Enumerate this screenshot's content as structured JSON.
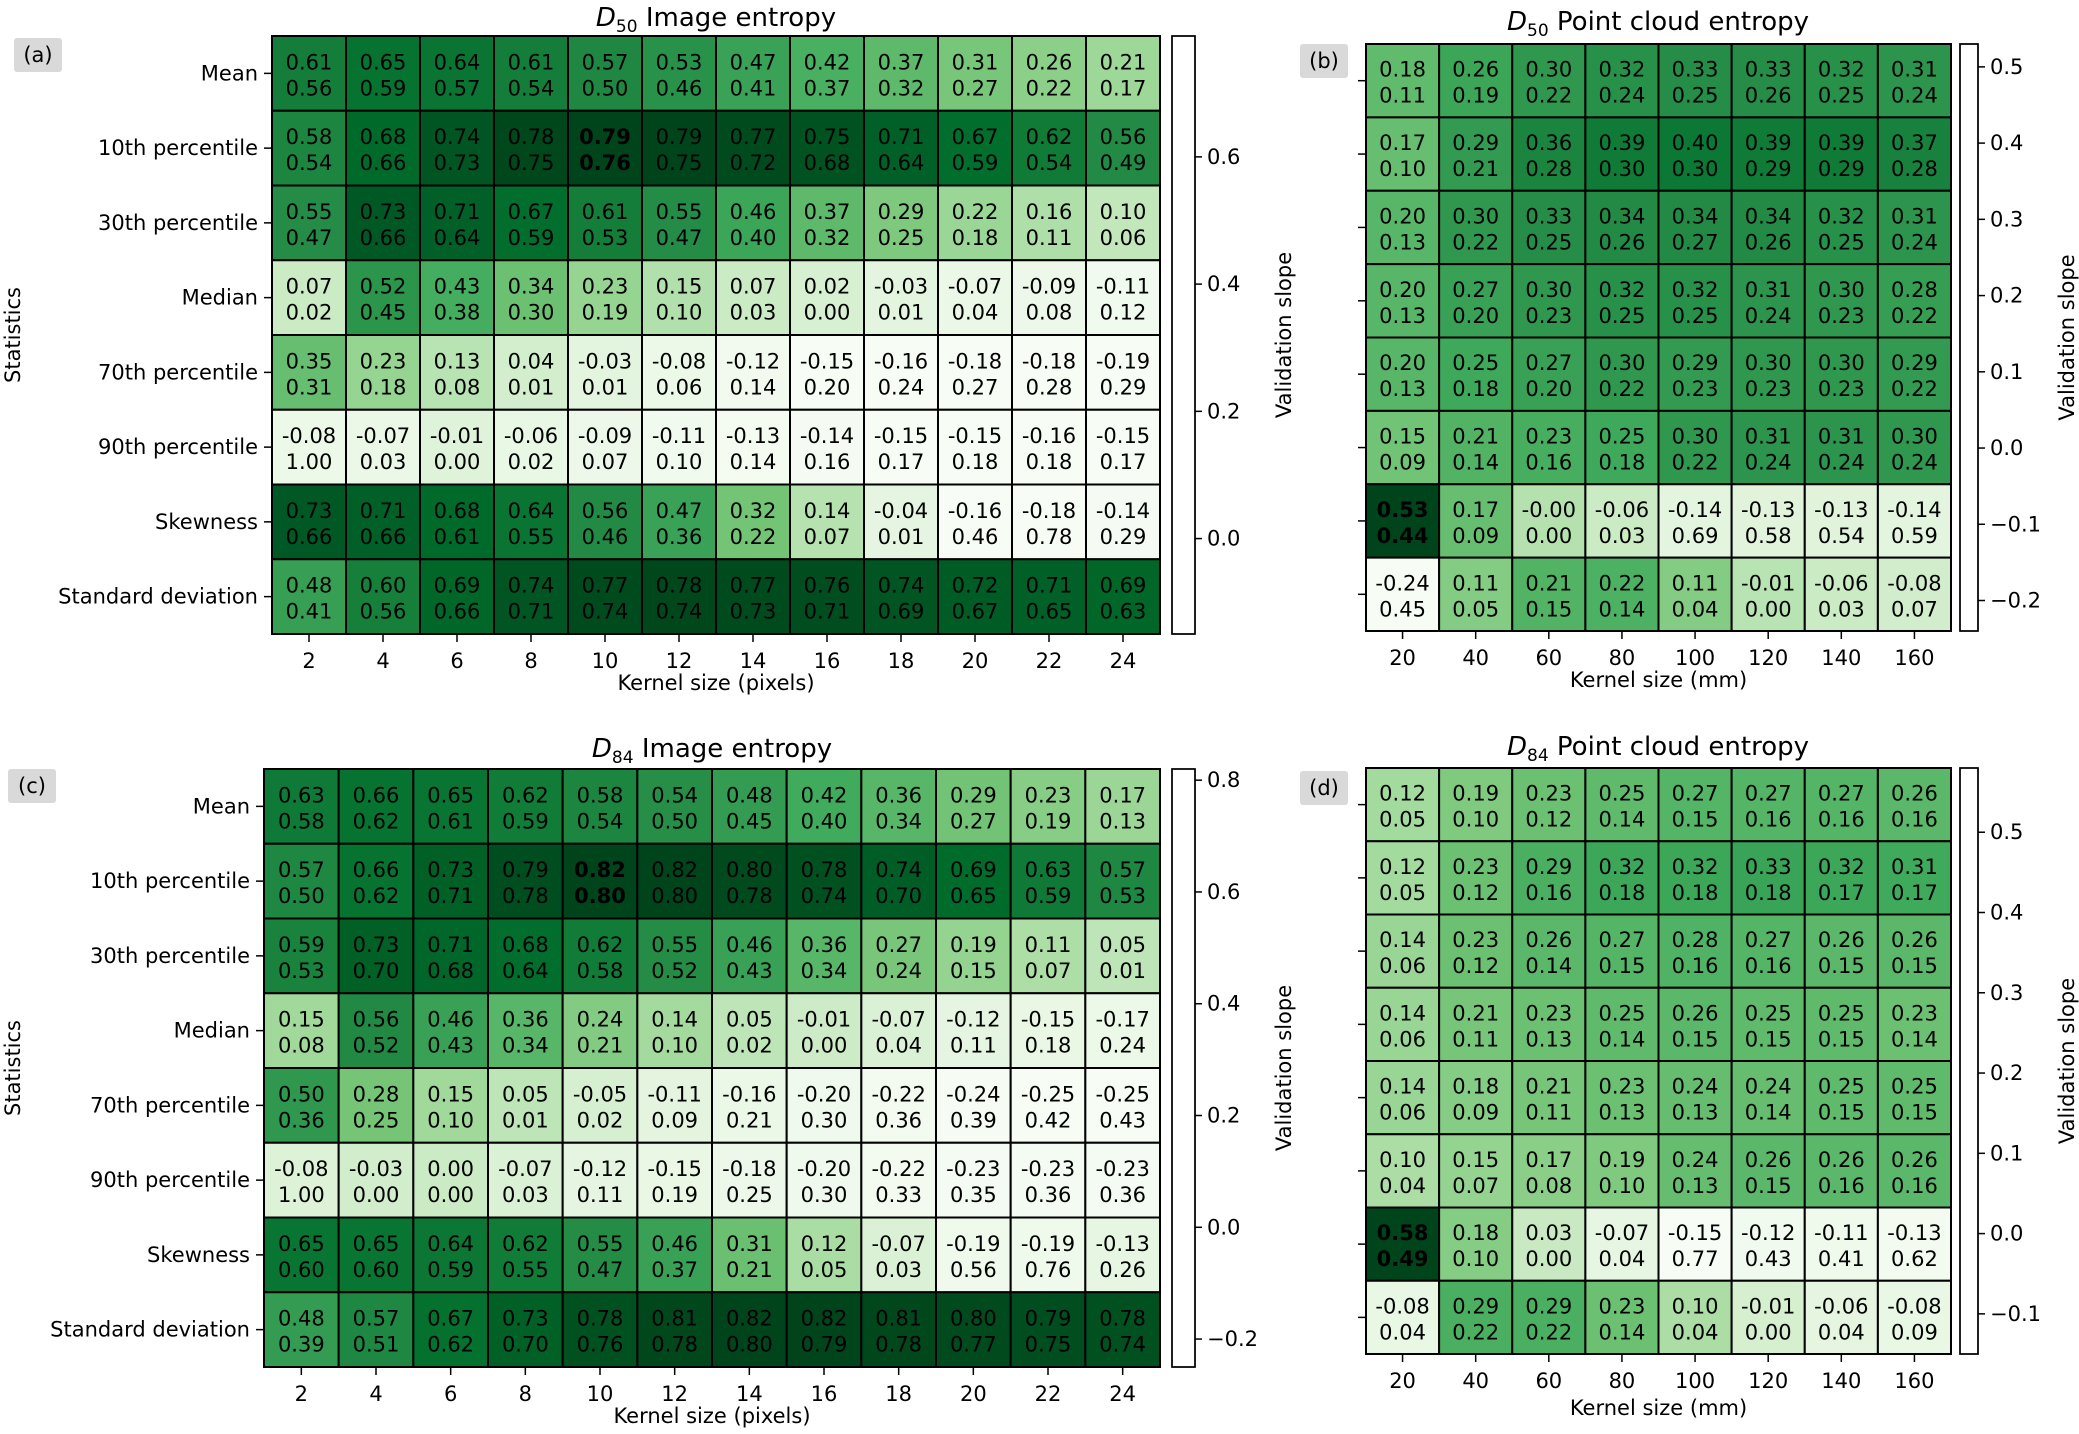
{
  "chart_data": [
    {
      "type": "heatmap",
      "panel_label": "(a)",
      "title_sym": "D",
      "title_sub": "50",
      "title_rest": " Image entropy",
      "xlabel": "Kernel size (pixels)",
      "ylabel": "Statistics",
      "colorbar_label": "Validation slope",
      "colorbar_ticks": [
        "0.0",
        "0.2",
        "0.4",
        "0.6"
      ],
      "colorbar_tick_values": [
        0.0,
        0.2,
        0.4,
        0.6
      ],
      "vmin": -0.15,
      "vmax": 0.79,
      "x_categories": [
        "2",
        "4",
        "6",
        "8",
        "10",
        "12",
        "14",
        "16",
        "18",
        "20",
        "22",
        "24"
      ],
      "y_categories": [
        "Mean",
        "10th percentile",
        "30th percentile",
        "Median",
        "70th percentile",
        "90th percentile",
        "Skewness",
        "Standard deviation"
      ],
      "bold_cell": [
        1,
        4
      ],
      "top_values": [
        [
          "0.61",
          "0.65",
          "0.64",
          "0.61",
          "0.57",
          "0.53",
          "0.47",
          "0.42",
          "0.37",
          "0.31",
          "0.26",
          "0.21"
        ],
        [
          "0.58",
          "0.68",
          "0.74",
          "0.78",
          "0.79",
          "0.79",
          "0.77",
          "0.75",
          "0.71",
          "0.67",
          "0.62",
          "0.56"
        ],
        [
          "0.55",
          "0.73",
          "0.71",
          "0.67",
          "0.61",
          "0.55",
          "0.46",
          "0.37",
          "0.29",
          "0.22",
          "0.16",
          "0.10"
        ],
        [
          "0.07",
          "0.52",
          "0.43",
          "0.34",
          "0.23",
          "0.15",
          "0.07",
          "0.02",
          "-0.03",
          "-0.07",
          "-0.09",
          "-0.11"
        ],
        [
          "0.35",
          "0.23",
          "0.13",
          "0.04",
          "-0.03",
          "-0.08",
          "-0.12",
          "-0.15",
          "-0.16",
          "-0.18",
          "-0.18",
          "-0.19"
        ],
        [
          "-0.08",
          "-0.07",
          "-0.01",
          "-0.06",
          "-0.09",
          "-0.11",
          "-0.13",
          "-0.14",
          "-0.15",
          "-0.15",
          "-0.16",
          "-0.15"
        ],
        [
          "0.73",
          "0.71",
          "0.68",
          "0.64",
          "0.56",
          "0.47",
          "0.32",
          "0.14",
          "-0.04",
          "-0.16",
          "-0.18",
          "-0.14"
        ],
        [
          "0.48",
          "0.60",
          "0.69",
          "0.74",
          "0.77",
          "0.78",
          "0.77",
          "0.76",
          "0.74",
          "0.72",
          "0.71",
          "0.69"
        ]
      ],
      "bottom_values": [
        [
          "0.56",
          "0.59",
          "0.57",
          "0.54",
          "0.50",
          "0.46",
          "0.41",
          "0.37",
          "0.32",
          "0.27",
          "0.22",
          "0.17"
        ],
        [
          "0.54",
          "0.66",
          "0.73",
          "0.75",
          "0.76",
          "0.75",
          "0.72",
          "0.68",
          "0.64",
          "0.59",
          "0.54",
          "0.49"
        ],
        [
          "0.47",
          "0.66",
          "0.64",
          "0.59",
          "0.53",
          "0.47",
          "0.40",
          "0.32",
          "0.25",
          "0.18",
          "0.11",
          "0.06"
        ],
        [
          "0.02",
          "0.45",
          "0.38",
          "0.30",
          "0.19",
          "0.10",
          "0.03",
          "0.00",
          "0.01",
          "0.04",
          "0.08",
          "0.12"
        ],
        [
          "0.31",
          "0.18",
          "0.08",
          "0.01",
          "0.01",
          "0.06",
          "0.14",
          "0.20",
          "0.24",
          "0.27",
          "0.28",
          "0.29"
        ],
        [
          "1.00",
          "0.03",
          "0.00",
          "0.02",
          "0.07",
          "0.10",
          "0.14",
          "0.16",
          "0.17",
          "0.18",
          "0.18",
          "0.17"
        ],
        [
          "0.66",
          "0.66",
          "0.61",
          "0.55",
          "0.46",
          "0.36",
          "0.22",
          "0.07",
          "0.01",
          "0.46",
          "0.78",
          "0.29"
        ],
        [
          "0.41",
          "0.56",
          "0.66",
          "0.71",
          "0.74",
          "0.74",
          "0.73",
          "0.71",
          "0.69",
          "0.67",
          "0.65",
          "0.63"
        ]
      ]
    },
    {
      "type": "heatmap",
      "panel_label": "(b)",
      "title_sym": "D",
      "title_sub": "50",
      "title_rest": " Point cloud entropy",
      "xlabel": "Kernel size (mm)",
      "ylabel": "",
      "colorbar_label": "Validation slope",
      "colorbar_ticks": [
        "−0.2",
        "−0.1",
        "0.0",
        "0.1",
        "0.2",
        "0.3",
        "0.4",
        "0.5"
      ],
      "colorbar_tick_values": [
        -0.2,
        -0.1,
        0.0,
        0.1,
        0.2,
        0.3,
        0.4,
        0.5
      ],
      "vmin": -0.24,
      "vmax": 0.53,
      "x_categories": [
        "20",
        "40",
        "60",
        "80",
        "100",
        "120",
        "140",
        "160"
      ],
      "y_categories": [
        "Mean",
        "10th percentile",
        "30th percentile",
        "Median",
        "70th percentile",
        "90th percentile",
        "Skewness",
        "Standard deviation"
      ],
      "bold_cell": [
        6,
        0
      ],
      "top_values": [
        [
          "0.18",
          "0.26",
          "0.30",
          "0.32",
          "0.33",
          "0.33",
          "0.32",
          "0.31"
        ],
        [
          "0.17",
          "0.29",
          "0.36",
          "0.39",
          "0.40",
          "0.39",
          "0.39",
          "0.37"
        ],
        [
          "0.20",
          "0.30",
          "0.33",
          "0.34",
          "0.34",
          "0.34",
          "0.32",
          "0.31"
        ],
        [
          "0.20",
          "0.27",
          "0.30",
          "0.32",
          "0.32",
          "0.31",
          "0.30",
          "0.28"
        ],
        [
          "0.20",
          "0.25",
          "0.27",
          "0.30",
          "0.29",
          "0.30",
          "0.30",
          "0.29"
        ],
        [
          "0.15",
          "0.21",
          "0.23",
          "0.25",
          "0.30",
          "0.31",
          "0.31",
          "0.30"
        ],
        [
          "0.53",
          "0.17",
          "-0.00",
          "-0.06",
          "-0.14",
          "-0.13",
          "-0.13",
          "-0.14"
        ],
        [
          "-0.24",
          "0.11",
          "0.21",
          "0.22",
          "0.11",
          "-0.01",
          "-0.06",
          "-0.08"
        ]
      ],
      "bottom_values": [
        [
          "0.11",
          "0.19",
          "0.22",
          "0.24",
          "0.25",
          "0.26",
          "0.25",
          "0.24"
        ],
        [
          "0.10",
          "0.21",
          "0.28",
          "0.30",
          "0.30",
          "0.29",
          "0.29",
          "0.28"
        ],
        [
          "0.13",
          "0.22",
          "0.25",
          "0.26",
          "0.27",
          "0.26",
          "0.25",
          "0.24"
        ],
        [
          "0.13",
          "0.20",
          "0.23",
          "0.25",
          "0.25",
          "0.24",
          "0.23",
          "0.22"
        ],
        [
          "0.13",
          "0.18",
          "0.20",
          "0.22",
          "0.23",
          "0.23",
          "0.23",
          "0.22"
        ],
        [
          "0.09",
          "0.14",
          "0.16",
          "0.18",
          "0.22",
          "0.24",
          "0.24",
          "0.24"
        ],
        [
          "0.44",
          "0.09",
          "0.00",
          "0.03",
          "0.69",
          "0.58",
          "0.54",
          "0.59"
        ],
        [
          "0.45",
          "0.05",
          "0.15",
          "0.14",
          "0.04",
          "0.00",
          "0.03",
          "0.07"
        ]
      ]
    },
    {
      "type": "heatmap",
      "panel_label": "(c)",
      "title_sym": "D",
      "title_sub": "84",
      "title_rest": " Image entropy",
      "xlabel": "Kernel size (pixels)",
      "ylabel": "Statistics",
      "colorbar_label": "Validation slope",
      "colorbar_ticks": [
        "−0.2",
        "0.0",
        "0.2",
        "0.4",
        "0.6",
        "0.8"
      ],
      "colorbar_tick_values": [
        -0.2,
        0.0,
        0.2,
        0.4,
        0.6,
        0.8
      ],
      "vmin": -0.25,
      "vmax": 0.82,
      "x_categories": [
        "2",
        "4",
        "6",
        "8",
        "10",
        "12",
        "14",
        "16",
        "18",
        "20",
        "22",
        "24"
      ],
      "y_categories": [
        "Mean",
        "10th percentile",
        "30th percentile",
        "Median",
        "70th percentile",
        "90th percentile",
        "Skewness",
        "Standard deviation"
      ],
      "bold_cell": [
        1,
        4
      ],
      "top_values": [
        [
          "0.63",
          "0.66",
          "0.65",
          "0.62",
          "0.58",
          "0.54",
          "0.48",
          "0.42",
          "0.36",
          "0.29",
          "0.23",
          "0.17"
        ],
        [
          "0.57",
          "0.66",
          "0.73",
          "0.79",
          "0.82",
          "0.82",
          "0.80",
          "0.78",
          "0.74",
          "0.69",
          "0.63",
          "0.57"
        ],
        [
          "0.59",
          "0.73",
          "0.71",
          "0.68",
          "0.62",
          "0.55",
          "0.46",
          "0.36",
          "0.27",
          "0.19",
          "0.11",
          "0.05"
        ],
        [
          "0.15",
          "0.56",
          "0.46",
          "0.36",
          "0.24",
          "0.14",
          "0.05",
          "-0.01",
          "-0.07",
          "-0.12",
          "-0.15",
          "-0.17"
        ],
        [
          "0.50",
          "0.28",
          "0.15",
          "0.05",
          "-0.05",
          "-0.11",
          "-0.16",
          "-0.20",
          "-0.22",
          "-0.24",
          "-0.25",
          "-0.25"
        ],
        [
          "-0.08",
          "-0.03",
          "0.00",
          "-0.07",
          "-0.12",
          "-0.15",
          "-0.18",
          "-0.20",
          "-0.22",
          "-0.23",
          "-0.23",
          "-0.23"
        ],
        [
          "0.65",
          "0.65",
          "0.64",
          "0.62",
          "0.55",
          "0.46",
          "0.31",
          "0.12",
          "-0.07",
          "-0.19",
          "-0.19",
          "-0.13"
        ],
        [
          "0.48",
          "0.57",
          "0.67",
          "0.73",
          "0.78",
          "0.81",
          "0.82",
          "0.82",
          "0.81",
          "0.80",
          "0.79",
          "0.78"
        ]
      ],
      "bottom_values": [
        [
          "0.58",
          "0.62",
          "0.61",
          "0.59",
          "0.54",
          "0.50",
          "0.45",
          "0.40",
          "0.34",
          "0.27",
          "0.19",
          "0.13"
        ],
        [
          "0.50",
          "0.62",
          "0.71",
          "0.78",
          "0.80",
          "0.80",
          "0.78",
          "0.74",
          "0.70",
          "0.65",
          "0.59",
          "0.53"
        ],
        [
          "0.53",
          "0.70",
          "0.68",
          "0.64",
          "0.58",
          "0.52",
          "0.43",
          "0.34",
          "0.24",
          "0.15",
          "0.07",
          "0.01"
        ],
        [
          "0.08",
          "0.52",
          "0.43",
          "0.34",
          "0.21",
          "0.10",
          "0.02",
          "0.00",
          "0.04",
          "0.11",
          "0.18",
          "0.24"
        ],
        [
          "0.36",
          "0.25",
          "0.10",
          "0.01",
          "0.02",
          "0.09",
          "0.21",
          "0.30",
          "0.36",
          "0.39",
          "0.42",
          "0.43"
        ],
        [
          "1.00",
          "0.00",
          "0.00",
          "0.03",
          "0.11",
          "0.19",
          "0.25",
          "0.30",
          "0.33",
          "0.35",
          "0.36",
          "0.36"
        ],
        [
          "0.60",
          "0.60",
          "0.59",
          "0.55",
          "0.47",
          "0.37",
          "0.21",
          "0.05",
          "0.03",
          "0.56",
          "0.76",
          "0.26"
        ],
        [
          "0.39",
          "0.51",
          "0.62",
          "0.70",
          "0.76",
          "0.78",
          "0.80",
          "0.79",
          "0.78",
          "0.77",
          "0.75",
          "0.74"
        ]
      ]
    },
    {
      "type": "heatmap",
      "panel_label": "(d)",
      "title_sym": "D",
      "title_sub": "84",
      "title_rest": " Point cloud entropy",
      "xlabel": "Kernel size (mm)",
      "ylabel": "",
      "colorbar_label": "Validation slope",
      "colorbar_ticks": [
        "−0.1",
        "0.0",
        "0.1",
        "0.2",
        "0.3",
        "0.4",
        "0.5"
      ],
      "colorbar_tick_values": [
        -0.1,
        0.0,
        0.1,
        0.2,
        0.3,
        0.4,
        0.5
      ],
      "vmin": -0.15,
      "vmax": 0.58,
      "x_categories": [
        "20",
        "40",
        "60",
        "80",
        "100",
        "120",
        "140",
        "160"
      ],
      "y_categories": [
        "Mean",
        "10th percentile",
        "30th percentile",
        "Median",
        "70th percentile",
        "90th percentile",
        "Skewness",
        "Standard deviation"
      ],
      "bold_cell": [
        6,
        0
      ],
      "top_values": [
        [
          "0.12",
          "0.19",
          "0.23",
          "0.25",
          "0.27",
          "0.27",
          "0.27",
          "0.26"
        ],
        [
          "0.12",
          "0.23",
          "0.29",
          "0.32",
          "0.32",
          "0.33",
          "0.32",
          "0.31"
        ],
        [
          "0.14",
          "0.23",
          "0.26",
          "0.27",
          "0.28",
          "0.27",
          "0.26",
          "0.26"
        ],
        [
          "0.14",
          "0.21",
          "0.23",
          "0.25",
          "0.26",
          "0.25",
          "0.25",
          "0.23"
        ],
        [
          "0.14",
          "0.18",
          "0.21",
          "0.23",
          "0.24",
          "0.24",
          "0.25",
          "0.25"
        ],
        [
          "0.10",
          "0.15",
          "0.17",
          "0.19",
          "0.24",
          "0.26",
          "0.26",
          "0.26"
        ],
        [
          "0.58",
          "0.18",
          "0.03",
          "-0.07",
          "-0.15",
          "-0.12",
          "-0.11",
          "-0.13"
        ],
        [
          "-0.08",
          "0.29",
          "0.29",
          "0.23",
          "0.10",
          "-0.01",
          "-0.06",
          "-0.08"
        ]
      ],
      "bottom_values": [
        [
          "0.05",
          "0.10",
          "0.12",
          "0.14",
          "0.15",
          "0.16",
          "0.16",
          "0.16"
        ],
        [
          "0.05",
          "0.12",
          "0.16",
          "0.18",
          "0.18",
          "0.18",
          "0.17",
          "0.17"
        ],
        [
          "0.06",
          "0.12",
          "0.14",
          "0.15",
          "0.16",
          "0.16",
          "0.15",
          "0.15"
        ],
        [
          "0.06",
          "0.11",
          "0.13",
          "0.14",
          "0.15",
          "0.15",
          "0.15",
          "0.14"
        ],
        [
          "0.06",
          "0.09",
          "0.11",
          "0.13",
          "0.13",
          "0.14",
          "0.15",
          "0.15"
        ],
        [
          "0.04",
          "0.07",
          "0.08",
          "0.10",
          "0.13",
          "0.15",
          "0.16",
          "0.16"
        ],
        [
          "0.49",
          "0.10",
          "0.00",
          "0.04",
          "0.77",
          "0.43",
          "0.41",
          "0.62"
        ],
        [
          "0.04",
          "0.22",
          "0.22",
          "0.14",
          "0.04",
          "0.00",
          "0.04",
          "0.09"
        ]
      ]
    }
  ]
}
